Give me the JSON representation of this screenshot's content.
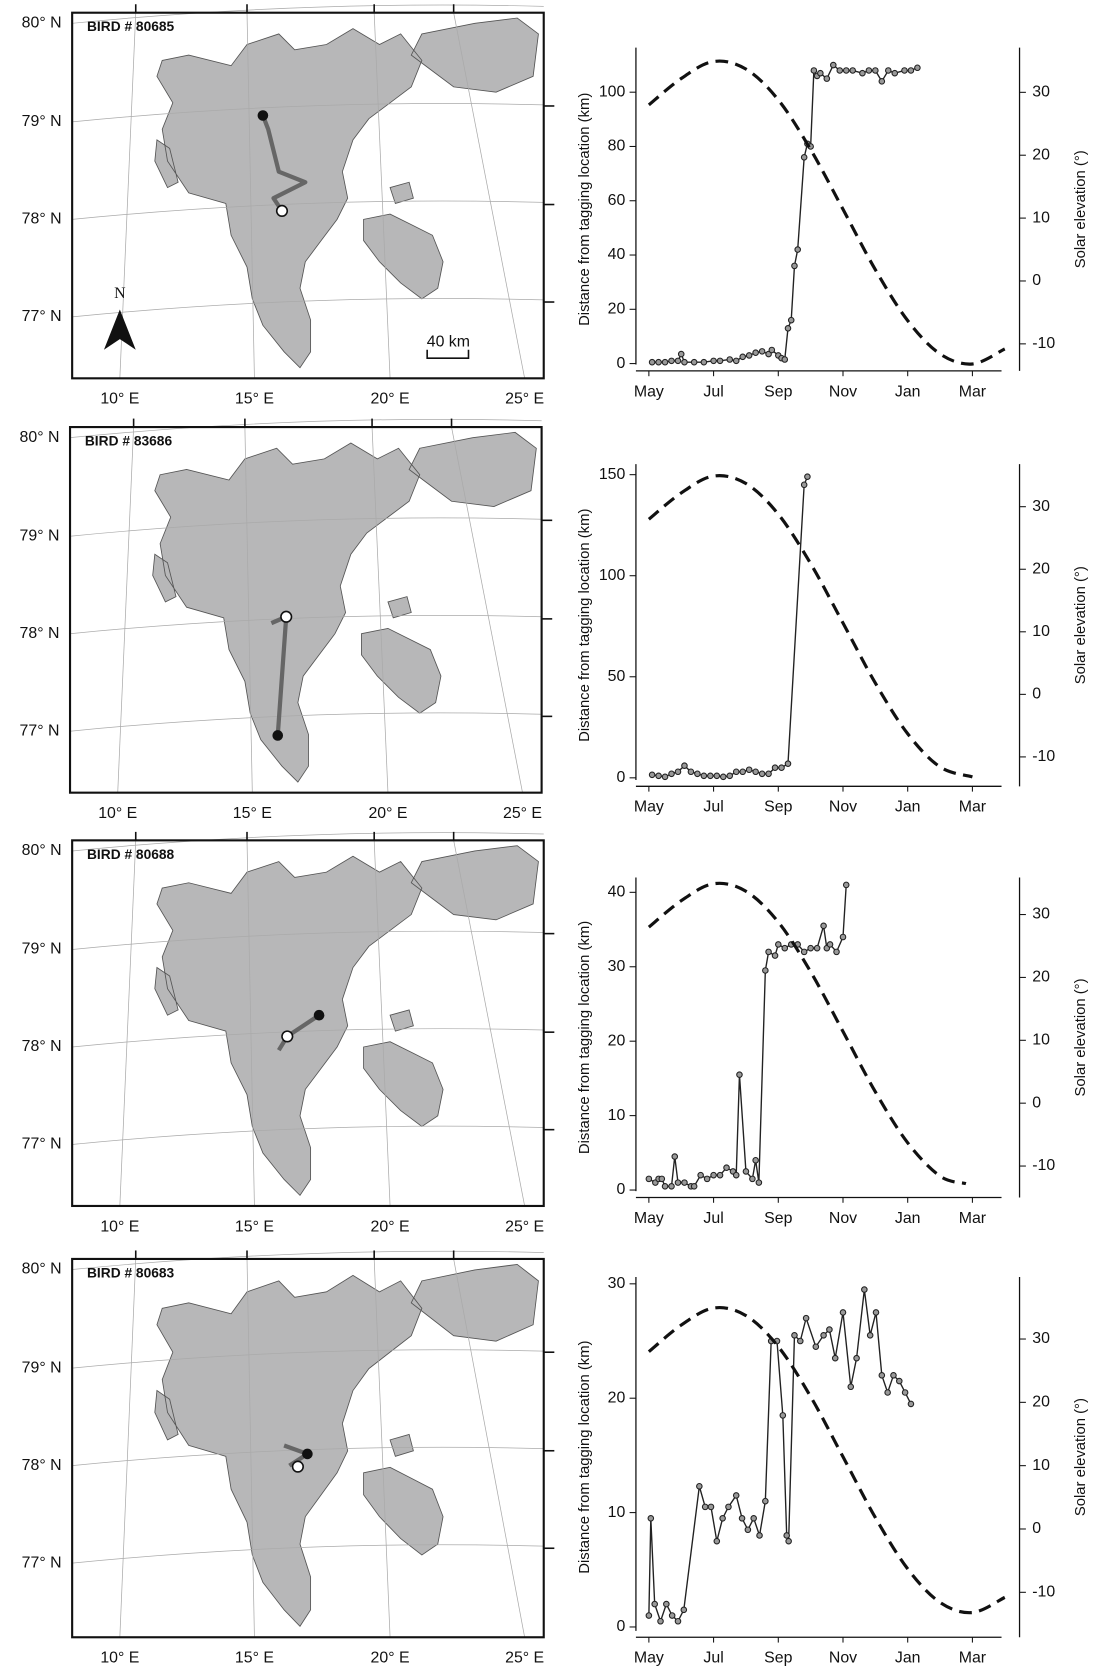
{
  "maps": [
    {
      "label": "BIRD # 80685",
      "lat_labels": [
        "80° N",
        "79° N",
        "78° N",
        "77° N"
      ],
      "lon_labels": [
        "10° E",
        "15° E",
        "20° E",
        "25° E"
      ],
      "scale_label": "40 km",
      "north_label": "N"
    },
    {
      "label": "BIRD # 83686",
      "lat_labels": [
        "80° N",
        "79° N",
        "78° N",
        "77° N"
      ],
      "lon_labels": [
        "10° E",
        "15° E",
        "20° E",
        "25° E"
      ]
    },
    {
      "label": "BIRD # 80688",
      "lat_labels": [
        "80° N",
        "79° N",
        "78° N",
        "77° N"
      ],
      "lon_labels": [
        "10° E",
        "15° E",
        "20° E",
        "25° E"
      ]
    },
    {
      "label": "BIRD # 80683",
      "lat_labels": [
        "80° N",
        "79° N",
        "78° N",
        "77° N"
      ],
      "lon_labels": [
        "10° E",
        "15° E",
        "20° E",
        "25° E"
      ]
    }
  ],
  "chart_data": [
    {
      "type": "line",
      "y_label": "Distance from tagging location (km)",
      "y2_label": "Solar elevation (°)",
      "xlim": [
        -0.4,
        10.9
      ],
      "xticks": [
        {
          "value": 0,
          "label": "May"
        },
        {
          "value": 2,
          "label": "Jul"
        },
        {
          "value": 4,
          "label": "Sep"
        },
        {
          "value": 6,
          "label": "Nov"
        },
        {
          "value": 8,
          "label": "Jan"
        },
        {
          "value": 10,
          "label": "Mar"
        }
      ],
      "ylim": [
        -2.7,
        116.4
      ],
      "yticks": [
        0,
        20,
        40,
        60,
        80,
        100
      ],
      "y2lim": [
        -14.3,
        37.1
      ],
      "y2ticks": [
        -10,
        0,
        10,
        20,
        30
      ],
      "series": [
        {
          "color": "#222222",
          "markers": true,
          "x": [
            0.1,
            0.3,
            0.5,
            0.7,
            0.9,
            1.0,
            1.1,
            1.4,
            1.7,
            2.0,
            2.2,
            2.5,
            2.7,
            2.9,
            3.1,
            3.3,
            3.5,
            3.7,
            3.8,
            4.0,
            4.1,
            4.2,
            4.3,
            4.4,
            4.5,
            4.6,
            4.8,
            4.9,
            5.0,
            5.1,
            5.2,
            5.3,
            5.5,
            5.7,
            5.9,
            6.1,
            6.3,
            6.6,
            6.8,
            7.0,
            7.2,
            7.4,
            7.6,
            7.9,
            8.1,
            8.3
          ],
          "values": [
            0.5,
            0.5,
            0.5,
            1,
            1,
            3.5,
            0.5,
            0.5,
            0.5,
            1,
            1,
            1.5,
            1,
            2.5,
            3,
            4,
            4.5,
            3.5,
            5,
            3,
            2,
            1.5,
            13,
            16,
            36,
            42,
            76,
            81,
            80,
            108,
            106,
            107,
            105,
            110,
            108,
            108,
            108,
            107,
            108,
            108,
            104,
            108,
            107,
            108,
            108,
            109
          ]
        },
        {
          "color": "#111111",
          "dash": true,
          "axis": "y2",
          "x": [
            0,
            1,
            2,
            3,
            4,
            5,
            6,
            7,
            8,
            9,
            10,
            11
          ],
          "values": [
            28,
            32.2,
            34.9,
            33.7,
            28.8,
            20.9,
            11.4,
            1.8,
            -6.3,
            -11.6,
            -13.2,
            -10.8
          ]
        }
      ]
    },
    {
      "type": "line",
      "y_label": "Distance from tagging location (km)",
      "y2_label": "Solar elevation (°)",
      "xlim": [
        -0.4,
        10.9
      ],
      "xticks": [
        {
          "value": 0,
          "label": "May"
        },
        {
          "value": 2,
          "label": "Jul"
        },
        {
          "value": 4,
          "label": "Sep"
        },
        {
          "value": 6,
          "label": "Nov"
        },
        {
          "value": 8,
          "label": "Jan"
        },
        {
          "value": 10,
          "label": "Mar"
        }
      ],
      "ylim": [
        -4.2,
        155.2
      ],
      "yticks": [
        0,
        50,
        100,
        150
      ],
      "y2lim": [
        -14.7,
        36.8
      ],
      "y2ticks": [
        -10,
        0,
        10,
        20,
        30
      ],
      "series": [
        {
          "color": "#222222",
          "markers": true,
          "x": [
            0.1,
            0.3,
            0.5,
            0.7,
            0.9,
            1.1,
            1.3,
            1.5,
            1.7,
            1.9,
            2.1,
            2.3,
            2.5,
            2.7,
            2.9,
            3.1,
            3.3,
            3.5,
            3.7,
            3.9,
            4.1,
            4.3,
            4.8,
            4.9
          ],
          "values": [
            1.5,
            1,
            0.5,
            2,
            3,
            6,
            3,
            2,
            1,
            1,
            1,
            0.5,
            1,
            3,
            3,
            4,
            3,
            2,
            2,
            5,
            5,
            7,
            145,
            149
          ]
        },
        {
          "color": "#111111",
          "dash": true,
          "axis": "y2",
          "x": [
            0,
            1,
            2,
            3,
            4,
            5,
            6,
            7,
            8,
            9,
            10
          ],
          "values": [
            28,
            32.2,
            34.9,
            33.7,
            28.8,
            20.9,
            11.4,
            1.8,
            -6.3,
            -11.6,
            -13.2
          ]
        }
      ]
    },
    {
      "type": "line",
      "y_label": "Distance from tagging location (km)",
      "y2_label": "Solar elevation (°)",
      "xlim": [
        -0.4,
        10.9
      ],
      "xticks": [
        {
          "value": 0,
          "label": "May"
        },
        {
          "value": 2,
          "label": "Jul"
        },
        {
          "value": 4,
          "label": "Sep"
        },
        {
          "value": 6,
          "label": "Nov"
        },
        {
          "value": 8,
          "label": "Jan"
        },
        {
          "value": 10,
          "label": "Mar"
        }
      ],
      "ylim": [
        -1.0,
        42.0
      ],
      "yticks": [
        0,
        10,
        20,
        30,
        40
      ],
      "y2lim": [
        -15.0,
        35.9
      ],
      "y2ticks": [
        -10,
        0,
        10,
        20,
        30
      ],
      "series": [
        {
          "color": "#222222",
          "markers": true,
          "x": [
            0,
            0.2,
            0.3,
            0.4,
            0.5,
            0.7,
            0.8,
            0.9,
            1.1,
            1.3,
            1.4,
            1.6,
            1.8,
            2.0,
            2.2,
            2.4,
            2.6,
            2.7,
            2.8,
            3.0,
            3.2,
            3.3,
            3.4,
            3.6,
            3.7,
            3.9,
            4.0,
            4.2,
            4.4,
            4.6,
            4.8,
            5.0,
            5.2,
            5.4,
            5.5,
            5.6,
            5.8,
            6.0,
            6.1
          ],
          "values": [
            1.5,
            1,
            1.5,
            1.5,
            0.5,
            0.5,
            4.5,
            1,
            1,
            0.5,
            0.5,
            2,
            1.5,
            2,
            2,
            3,
            2.5,
            2,
            15.5,
            2.5,
            1.5,
            4,
            1,
            29.5,
            32,
            31.5,
            33,
            32.5,
            33,
            33,
            32,
            32.5,
            32.5,
            35.5,
            32.5,
            33,
            32,
            34,
            41
          ]
        },
        {
          "color": "#111111",
          "dash": true,
          "axis": "y2",
          "x": [
            0,
            1,
            2,
            3,
            4,
            5,
            6,
            7,
            8,
            9,
            9.8
          ],
          "values": [
            28,
            32.2,
            34.9,
            33.7,
            28.8,
            20.9,
            11.4,
            1.8,
            -6.3,
            -11.6,
            -12.8
          ]
        }
      ]
    },
    {
      "type": "line",
      "y_label": "Distance from tagging location (km)",
      "y2_label": "Solar elevation (°)",
      "xlim": [
        -0.4,
        10.9
      ],
      "xticks": [
        {
          "value": 0,
          "label": "May"
        },
        {
          "value": 2,
          "label": "Jul"
        },
        {
          "value": 4,
          "label": "Sep"
        },
        {
          "value": 6,
          "label": "Nov"
        },
        {
          "value": 8,
          "label": "Jan"
        },
        {
          "value": 10,
          "label": "Mar"
        }
      ],
      "ylim": [
        -0.9,
        30.6
      ],
      "yticks": [
        0,
        10,
        20,
        30
      ],
      "y2lim": [
        -17.1,
        39.8
      ],
      "y2ticks": [
        -10,
        0,
        10,
        20,
        30
      ],
      "series": [
        {
          "color": "#222222",
          "markers": true,
          "x": [
            0,
            0.06,
            0.18,
            0.36,
            0.54,
            0.72,
            0.9,
            1.08,
            1.56,
            1.74,
            1.92,
            2.1,
            2.28,
            2.46,
            2.7,
            2.88,
            3.06,
            3.24,
            3.42,
            3.6,
            3.78,
            3.96,
            4.14,
            4.26,
            4.32,
            4.5,
            4.68,
            4.86,
            5.16,
            5.4,
            5.58,
            5.76,
            6.0,
            6.24,
            6.42,
            6.66,
            6.84,
            7.02,
            7.2,
            7.38,
            7.56,
            7.74,
            7.92,
            8.1
          ],
          "values": [
            1,
            9.5,
            2,
            0.5,
            2,
            1,
            0.5,
            1.5,
            12.3,
            10.5,
            10.5,
            7.5,
            9.5,
            10.5,
            11.5,
            9.5,
            8.5,
            9.5,
            8,
            11,
            25,
            25,
            18.5,
            8,
            7.5,
            25.5,
            25,
            27,
            24.5,
            25.5,
            26,
            23.5,
            27.5,
            21,
            23.5,
            29.5,
            25.5,
            27.5,
            22,
            20.5,
            22,
            21.5,
            20.5,
            19.5
          ]
        },
        {
          "color": "#111111",
          "dash": true,
          "axis": "y2",
          "x": [
            0,
            1,
            2,
            3,
            4,
            5,
            6,
            7,
            8,
            9,
            10,
            11
          ],
          "values": [
            28,
            32.2,
            34.9,
            33.7,
            28.8,
            20.9,
            11.4,
            1.8,
            -6.3,
            -11.6,
            -13.2,
            -10.8
          ]
        }
      ]
    }
  ]
}
